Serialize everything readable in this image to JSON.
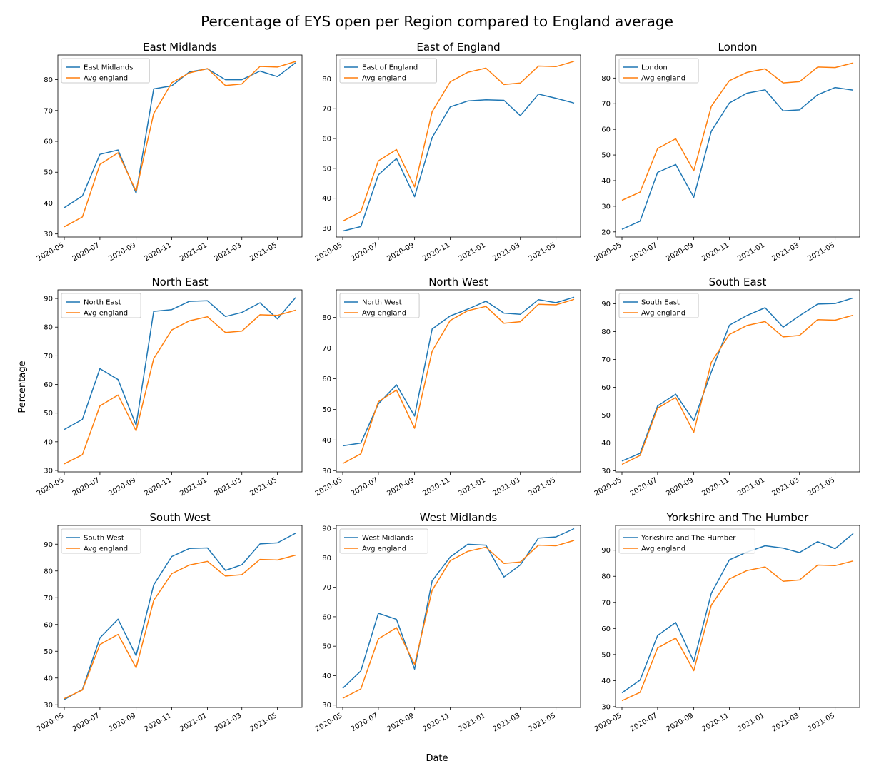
{
  "figure": {
    "title": "Percentage of EYS open per Region compared to England average",
    "xlabel": "Date",
    "ylabel": "Percentage"
  },
  "colors": {
    "region": "#1f77b4",
    "average": "#ff7f0e"
  },
  "chart_data": [
    {
      "type": "line",
      "title": "East Midlands",
      "x": [
        "2020-05-01",
        "2020-06-01",
        "2020-07-01",
        "2020-08-01",
        "2020-09-01",
        "2020-10-01",
        "2020-11-01",
        "2020-12-01",
        "2021-01-01",
        "2021-02-01",
        "2021-03-01",
        "2021-04-01",
        "2021-05-01",
        "2021-06-01"
      ],
      "series": [
        {
          "name": "East Midlands",
          "values": [
            38.5,
            42.3,
            55.8,
            57.2,
            43.2,
            77.0,
            78.0,
            82.5,
            83.5,
            80.0,
            80.0,
            82.8,
            81.0,
            85.5
          ]
        },
        {
          "name": "Avg england",
          "values": [
            32.3,
            35.5,
            52.5,
            56.3,
            43.8,
            69.0,
            79.0,
            82.2,
            83.6,
            78.1,
            78.6,
            84.3,
            84.1,
            85.9
          ]
        }
      ],
      "ylim": [
        29,
        88
      ],
      "yticks": [
        30,
        40,
        50,
        60,
        70,
        80
      ],
      "xticks": [
        "2020-05",
        "2020-07",
        "2020-09",
        "2020-11",
        "2021-01",
        "2021-03",
        "2021-05"
      ],
      "legend": "top-left"
    },
    {
      "type": "line",
      "title": "East of England",
      "x": [
        "2020-05-01",
        "2020-06-01",
        "2020-07-01",
        "2020-08-01",
        "2020-09-01",
        "2020-10-01",
        "2020-11-01",
        "2020-12-01",
        "2021-01-01",
        "2021-02-01",
        "2021-03-01",
        "2021-04-01",
        "2021-05-01",
        "2021-06-01"
      ],
      "series": [
        {
          "name": "East of England",
          "values": [
            29.0,
            30.5,
            47.8,
            53.3,
            40.5,
            60.3,
            70.6,
            72.6,
            73.0,
            72.8,
            67.7,
            74.9,
            73.5,
            71.9
          ]
        },
        {
          "name": "Avg england",
          "values": [
            32.3,
            35.5,
            52.5,
            56.3,
            43.8,
            69.0,
            79.0,
            82.2,
            83.6,
            78.1,
            78.6,
            84.3,
            84.1,
            85.9
          ]
        }
      ],
      "ylim": [
        27,
        88
      ],
      "yticks": [
        30,
        40,
        50,
        60,
        70,
        80
      ],
      "xticks": [
        "2020-05",
        "2020-07",
        "2020-09",
        "2020-11",
        "2021-01",
        "2021-03",
        "2021-05"
      ],
      "legend": "top-left"
    },
    {
      "type": "line",
      "title": "London",
      "x": [
        "2020-05-01",
        "2020-06-01",
        "2020-07-01",
        "2020-08-01",
        "2020-09-01",
        "2020-10-01",
        "2020-11-01",
        "2020-12-01",
        "2021-01-01",
        "2021-02-01",
        "2021-03-01",
        "2021-04-01",
        "2021-05-01",
        "2021-06-01"
      ],
      "series": [
        {
          "name": "London",
          "values": [
            21.0,
            24.2,
            43.2,
            46.3,
            33.5,
            59.3,
            70.3,
            74.1,
            75.4,
            67.2,
            67.6,
            73.5,
            76.3,
            75.3
          ]
        },
        {
          "name": "Avg england",
          "values": [
            32.3,
            35.5,
            52.5,
            56.3,
            43.8,
            69.0,
            79.0,
            82.2,
            83.6,
            78.1,
            78.6,
            84.3,
            84.1,
            85.9
          ]
        }
      ],
      "ylim": [
        18,
        89
      ],
      "yticks": [
        20,
        30,
        40,
        50,
        60,
        70,
        80
      ],
      "xticks": [
        "2020-05",
        "2020-07",
        "2020-09",
        "2020-11",
        "2021-01",
        "2021-03",
        "2021-05"
      ],
      "legend": "top-left"
    },
    {
      "type": "line",
      "title": "North East",
      "x": [
        "2020-05-01",
        "2020-06-01",
        "2020-07-01",
        "2020-08-01",
        "2020-09-01",
        "2020-10-01",
        "2020-11-01",
        "2020-12-01",
        "2021-01-01",
        "2021-02-01",
        "2021-03-01",
        "2021-04-01",
        "2021-05-01",
        "2021-06-01"
      ],
      "series": [
        {
          "name": "North East",
          "values": [
            44.3,
            47.8,
            65.5,
            61.7,
            45.7,
            85.5,
            86.1,
            89.0,
            89.2,
            83.7,
            85.1,
            88.5,
            82.9,
            90.3
          ]
        },
        {
          "name": "Avg england",
          "values": [
            32.3,
            35.5,
            52.5,
            56.3,
            43.8,
            69.0,
            79.0,
            82.2,
            83.6,
            78.1,
            78.6,
            84.3,
            84.1,
            85.9
          ]
        }
      ],
      "ylim": [
        29.5,
        93
      ],
      "yticks": [
        30,
        40,
        50,
        60,
        70,
        80,
        90
      ],
      "xticks": [
        "2020-05",
        "2020-07",
        "2020-09",
        "2020-11",
        "2021-01",
        "2021-03",
        "2021-05"
      ],
      "legend": "top-left"
    },
    {
      "type": "line",
      "title": "North West",
      "x": [
        "2020-05-01",
        "2020-06-01",
        "2020-07-01",
        "2020-08-01",
        "2020-09-01",
        "2020-10-01",
        "2020-11-01",
        "2020-12-01",
        "2021-01-01",
        "2021-02-01",
        "2021-03-01",
        "2021-04-01",
        "2021-05-01",
        "2021-06-01"
      ],
      "series": [
        {
          "name": "North West",
          "values": [
            38.1,
            39.0,
            51.8,
            58.0,
            47.8,
            76.2,
            80.5,
            82.7,
            85.3,
            81.4,
            81.0,
            85.8,
            84.8,
            86.6
          ]
        },
        {
          "name": "Avg england",
          "values": [
            32.3,
            35.5,
            52.5,
            56.3,
            43.8,
            69.0,
            79.0,
            82.2,
            83.6,
            78.1,
            78.6,
            84.3,
            84.1,
            85.9
          ]
        }
      ],
      "ylim": [
        29.6,
        89
      ],
      "yticks": [
        30,
        40,
        50,
        60,
        70,
        80
      ],
      "xticks": [
        "2020-05",
        "2020-07",
        "2020-09",
        "2020-11",
        "2021-01",
        "2021-03",
        "2021-05"
      ],
      "legend": "top-left"
    },
    {
      "type": "line",
      "title": "South East",
      "x": [
        "2020-05-01",
        "2020-06-01",
        "2020-07-01",
        "2020-08-01",
        "2020-09-01",
        "2020-10-01",
        "2020-11-01",
        "2020-12-01",
        "2021-01-01",
        "2021-02-01",
        "2021-03-01",
        "2021-04-01",
        "2021-05-01",
        "2021-06-01"
      ],
      "series": [
        {
          "name": "South East",
          "values": [
            33.5,
            36.3,
            53.3,
            57.5,
            48.0,
            65.5,
            82.3,
            85.8,
            88.6,
            81.6,
            85.7,
            89.9,
            90.1,
            92.1
          ]
        },
        {
          "name": "Avg england",
          "values": [
            32.3,
            35.5,
            52.5,
            56.3,
            43.8,
            69.0,
            79.0,
            82.2,
            83.6,
            78.1,
            78.6,
            84.3,
            84.1,
            85.9
          ]
        }
      ],
      "ylim": [
        29.6,
        95
      ],
      "yticks": [
        30,
        40,
        50,
        60,
        70,
        80,
        90
      ],
      "xticks": [
        "2020-05",
        "2020-07",
        "2020-09",
        "2020-11",
        "2021-01",
        "2021-03",
        "2021-05"
      ],
      "legend": "top-left"
    },
    {
      "type": "line",
      "title": "South West",
      "x": [
        "2020-05-01",
        "2020-06-01",
        "2020-07-01",
        "2020-08-01",
        "2020-09-01",
        "2020-10-01",
        "2020-11-01",
        "2020-12-01",
        "2021-01-01",
        "2021-02-01",
        "2021-03-01",
        "2021-04-01",
        "2021-05-01",
        "2021-06-01"
      ],
      "series": [
        {
          "name": "South West",
          "values": [
            32.0,
            35.7,
            55.0,
            62.0,
            48.3,
            74.8,
            85.4,
            88.4,
            88.6,
            80.2,
            82.3,
            90.1,
            90.5,
            94.1
          ]
        },
        {
          "name": "Avg england",
          "values": [
            32.3,
            35.5,
            52.5,
            56.3,
            43.8,
            69.0,
            79.0,
            82.2,
            83.6,
            78.1,
            78.6,
            84.3,
            84.1,
            85.9
          ]
        }
      ],
      "ylim": [
        29,
        97
      ],
      "yticks": [
        30,
        40,
        50,
        60,
        70,
        80,
        90
      ],
      "xticks": [
        "2020-05",
        "2020-07",
        "2020-09",
        "2020-11",
        "2021-01",
        "2021-03",
        "2021-05"
      ],
      "legend": "top-left"
    },
    {
      "type": "line",
      "title": "West Midlands",
      "x": [
        "2020-05-01",
        "2020-06-01",
        "2020-07-01",
        "2020-08-01",
        "2020-09-01",
        "2020-10-01",
        "2020-11-01",
        "2020-12-01",
        "2021-01-01",
        "2021-02-01",
        "2021-03-01",
        "2021-04-01",
        "2021-05-01",
        "2021-06-01"
      ],
      "series": [
        {
          "name": "West Midlands",
          "values": [
            35.7,
            41.6,
            61.2,
            59.1,
            42.2,
            72.2,
            80.3,
            84.6,
            84.3,
            73.5,
            77.6,
            86.7,
            87.1,
            89.9
          ]
        },
        {
          "name": "Avg england",
          "values": [
            32.3,
            35.5,
            52.5,
            56.3,
            43.8,
            69.0,
            79.0,
            82.2,
            83.6,
            78.1,
            78.6,
            84.3,
            84.1,
            85.9
          ]
        }
      ],
      "ylim": [
        29.2,
        91
      ],
      "yticks": [
        30,
        40,
        50,
        60,
        70,
        80,
        90
      ],
      "xticks": [
        "2020-05",
        "2020-07",
        "2020-09",
        "2020-11",
        "2021-01",
        "2021-03",
        "2021-05"
      ],
      "legend": "top-left"
    },
    {
      "type": "line",
      "title": "Yorkshire and The Humber",
      "x": [
        "2020-05-01",
        "2020-06-01",
        "2020-07-01",
        "2020-08-01",
        "2020-09-01",
        "2020-10-01",
        "2020-11-01",
        "2020-12-01",
        "2021-01-01",
        "2021-02-01",
        "2021-03-01",
        "2021-04-01",
        "2021-05-01",
        "2021-06-01"
      ],
      "series": [
        {
          "name": "Yorkshire and The Humber",
          "values": [
            35.3,
            40.2,
            57.3,
            62.3,
            47.3,
            73.5,
            86.3,
            89.3,
            91.7,
            90.8,
            89.1,
            93.3,
            90.6,
            96.4
          ]
        },
        {
          "name": "Avg england",
          "values": [
            32.3,
            35.5,
            52.5,
            56.3,
            43.8,
            69.0,
            79.0,
            82.2,
            83.6,
            78.1,
            78.6,
            84.3,
            84.1,
            85.9
          ]
        }
      ],
      "ylim": [
        29.7,
        99.5
      ],
      "yticks": [
        30,
        40,
        50,
        60,
        70,
        80,
        90
      ],
      "xticks": [
        "2020-05",
        "2020-07",
        "2020-09",
        "2020-11",
        "2021-01",
        "2021-03",
        "2021-05"
      ],
      "legend": "top-left"
    }
  ]
}
